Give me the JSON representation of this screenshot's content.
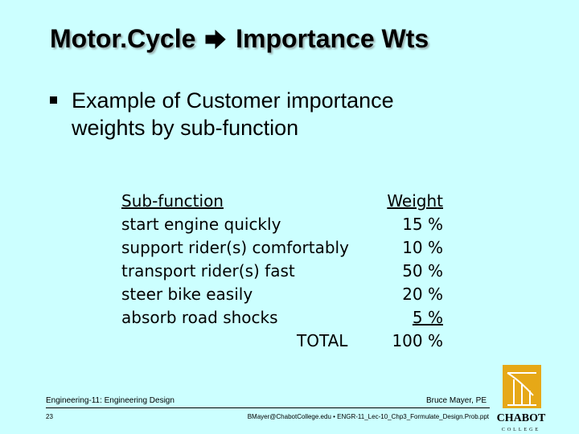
{
  "slide": {
    "title_left": "Motor.Cycle",
    "title_right": "Importance Wts",
    "bullet": [
      "Example of Customer importance",
      "weights by sub-function"
    ]
  },
  "table": {
    "header": {
      "label": "Sub-function",
      "value": "Weight"
    },
    "rows": [
      {
        "label": "start engine quickly",
        "value": "15 %"
      },
      {
        "label": "support rider(s) comfortably",
        "value": "10 %"
      },
      {
        "label": "transport rider(s) fast",
        "value": "50 %"
      },
      {
        "label": "steer bike easily",
        "value": "20 %"
      },
      {
        "label": "absorb road shocks",
        "value": "5 %"
      }
    ],
    "total": {
      "label": "TOTAL",
      "value": "100 %"
    }
  },
  "footer": {
    "course": "Engineering-11: Engineering Design",
    "page": "23",
    "author": "Bruce Mayer, PE",
    "info": "BMayer@ChabotCollege.edu • ENGR-11_Lec-10_Chp3_Formulate_Design.Prob.ppt"
  },
  "logo": {
    "name": "CHABOT",
    "sub": "COLLEGE"
  },
  "colors": {
    "background": "#ccffff",
    "logo_gold": "#e6a817"
  }
}
